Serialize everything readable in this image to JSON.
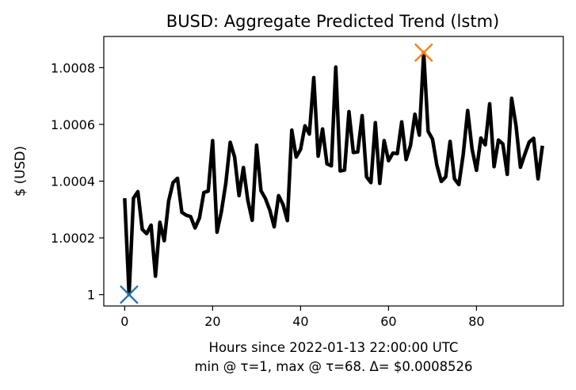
{
  "chart_data": {
    "type": "line",
    "title": "BUSD: Aggregate Predicted Trend (lstm)",
    "xlabel": "Hours since 2022-01-13 22:00:00 UTC",
    "xlabel_line2": "min @ τ=1, max @ τ=68. Δ= $0.0008526",
    "ylabel": "$ (USD)",
    "xlim": [
      -4.75,
      99.75
    ],
    "ylim": [
      0.99996,
      1.00091
    ],
    "xticks": [
      0,
      20,
      40,
      60,
      80
    ],
    "xtick_labels": [
      "0",
      "20",
      "40",
      "60",
      "80"
    ],
    "yticks": [
      1.0,
      1.0002,
      1.0004,
      1.0006,
      1.0008
    ],
    "ytick_labels": [
      "1",
      "1.0002",
      "1.0004",
      "1.0006",
      "1.0008"
    ],
    "grid": false,
    "series": [
      {
        "color": "#000000",
        "x": [
          0,
          1,
          2,
          3,
          4,
          5,
          6,
          7,
          8,
          9,
          10,
          11,
          12,
          13,
          14,
          15,
          16,
          17,
          18,
          19,
          20,
          21,
          22,
          23,
          24,
          25,
          26,
          27,
          28,
          29,
          30,
          31,
          32,
          33,
          34,
          35,
          36,
          37,
          38,
          39,
          40,
          41,
          42,
          43,
          44,
          45,
          46,
          47,
          48,
          49,
          50,
          51,
          52,
          53,
          54,
          55,
          56,
          57,
          58,
          59,
          60,
          61,
          62,
          63,
          64,
          65,
          66,
          67,
          68,
          69,
          70,
          71,
          72,
          73,
          74,
          75,
          76,
          77,
          78,
          79,
          80,
          81,
          82,
          83,
          84,
          85,
          86,
          87,
          88,
          89,
          90,
          91,
          92,
          93,
          94,
          95
        ],
        "y": [
          1.00034,
          1.0,
          1.00034,
          1.000363,
          1.00023,
          1.000215,
          1.000245,
          1.000065,
          1.000255,
          1.00019,
          1.00033,
          1.000395,
          1.00041,
          1.00029,
          1.00028,
          1.000275,
          1.000235,
          1.00027,
          1.00036,
          1.000365,
          1.000543,
          1.00022,
          1.000293,
          1.000393,
          1.000537,
          1.000485,
          1.000349,
          1.000448,
          1.000333,
          1.000262,
          1.000527,
          1.000366,
          1.000339,
          1.000298,
          1.000239,
          1.000349,
          1.000318,
          1.000261,
          1.00058,
          1.000485,
          1.000512,
          1.000595,
          1.000566,
          1.000765,
          1.000488,
          1.000584,
          1.000461,
          1.000454,
          1.000802,
          1.000436,
          1.000439,
          1.000645,
          1.000501,
          1.000503,
          1.000631,
          1.000415,
          1.000395,
          1.000606,
          1.000392,
          1.000543,
          1.000472,
          1.000499,
          1.000497,
          1.000609,
          1.000476,
          1.000526,
          1.000636,
          1.000562,
          1.000853,
          1.000576,
          1.000548,
          1.000456,
          1.000399,
          1.000415,
          1.00054,
          1.000408,
          1.000388,
          1.000496,
          1.000649,
          1.000513,
          1.000438,
          1.000552,
          1.000528,
          1.000673,
          1.000451,
          1.000545,
          1.000531,
          1.000424,
          1.000692,
          1.000595,
          1.000449,
          1.000495,
          1.000538,
          1.000551,
          1.000408,
          1.000525
        ]
      }
    ],
    "markers": [
      {
        "name": "min",
        "x": 1,
        "y": 1.0,
        "symbol": "x",
        "color": "#1f77b4"
      },
      {
        "name": "max",
        "x": 68,
        "y": 1.000853,
        "symbol": "x",
        "color": "#ff7f0e"
      }
    ]
  }
}
